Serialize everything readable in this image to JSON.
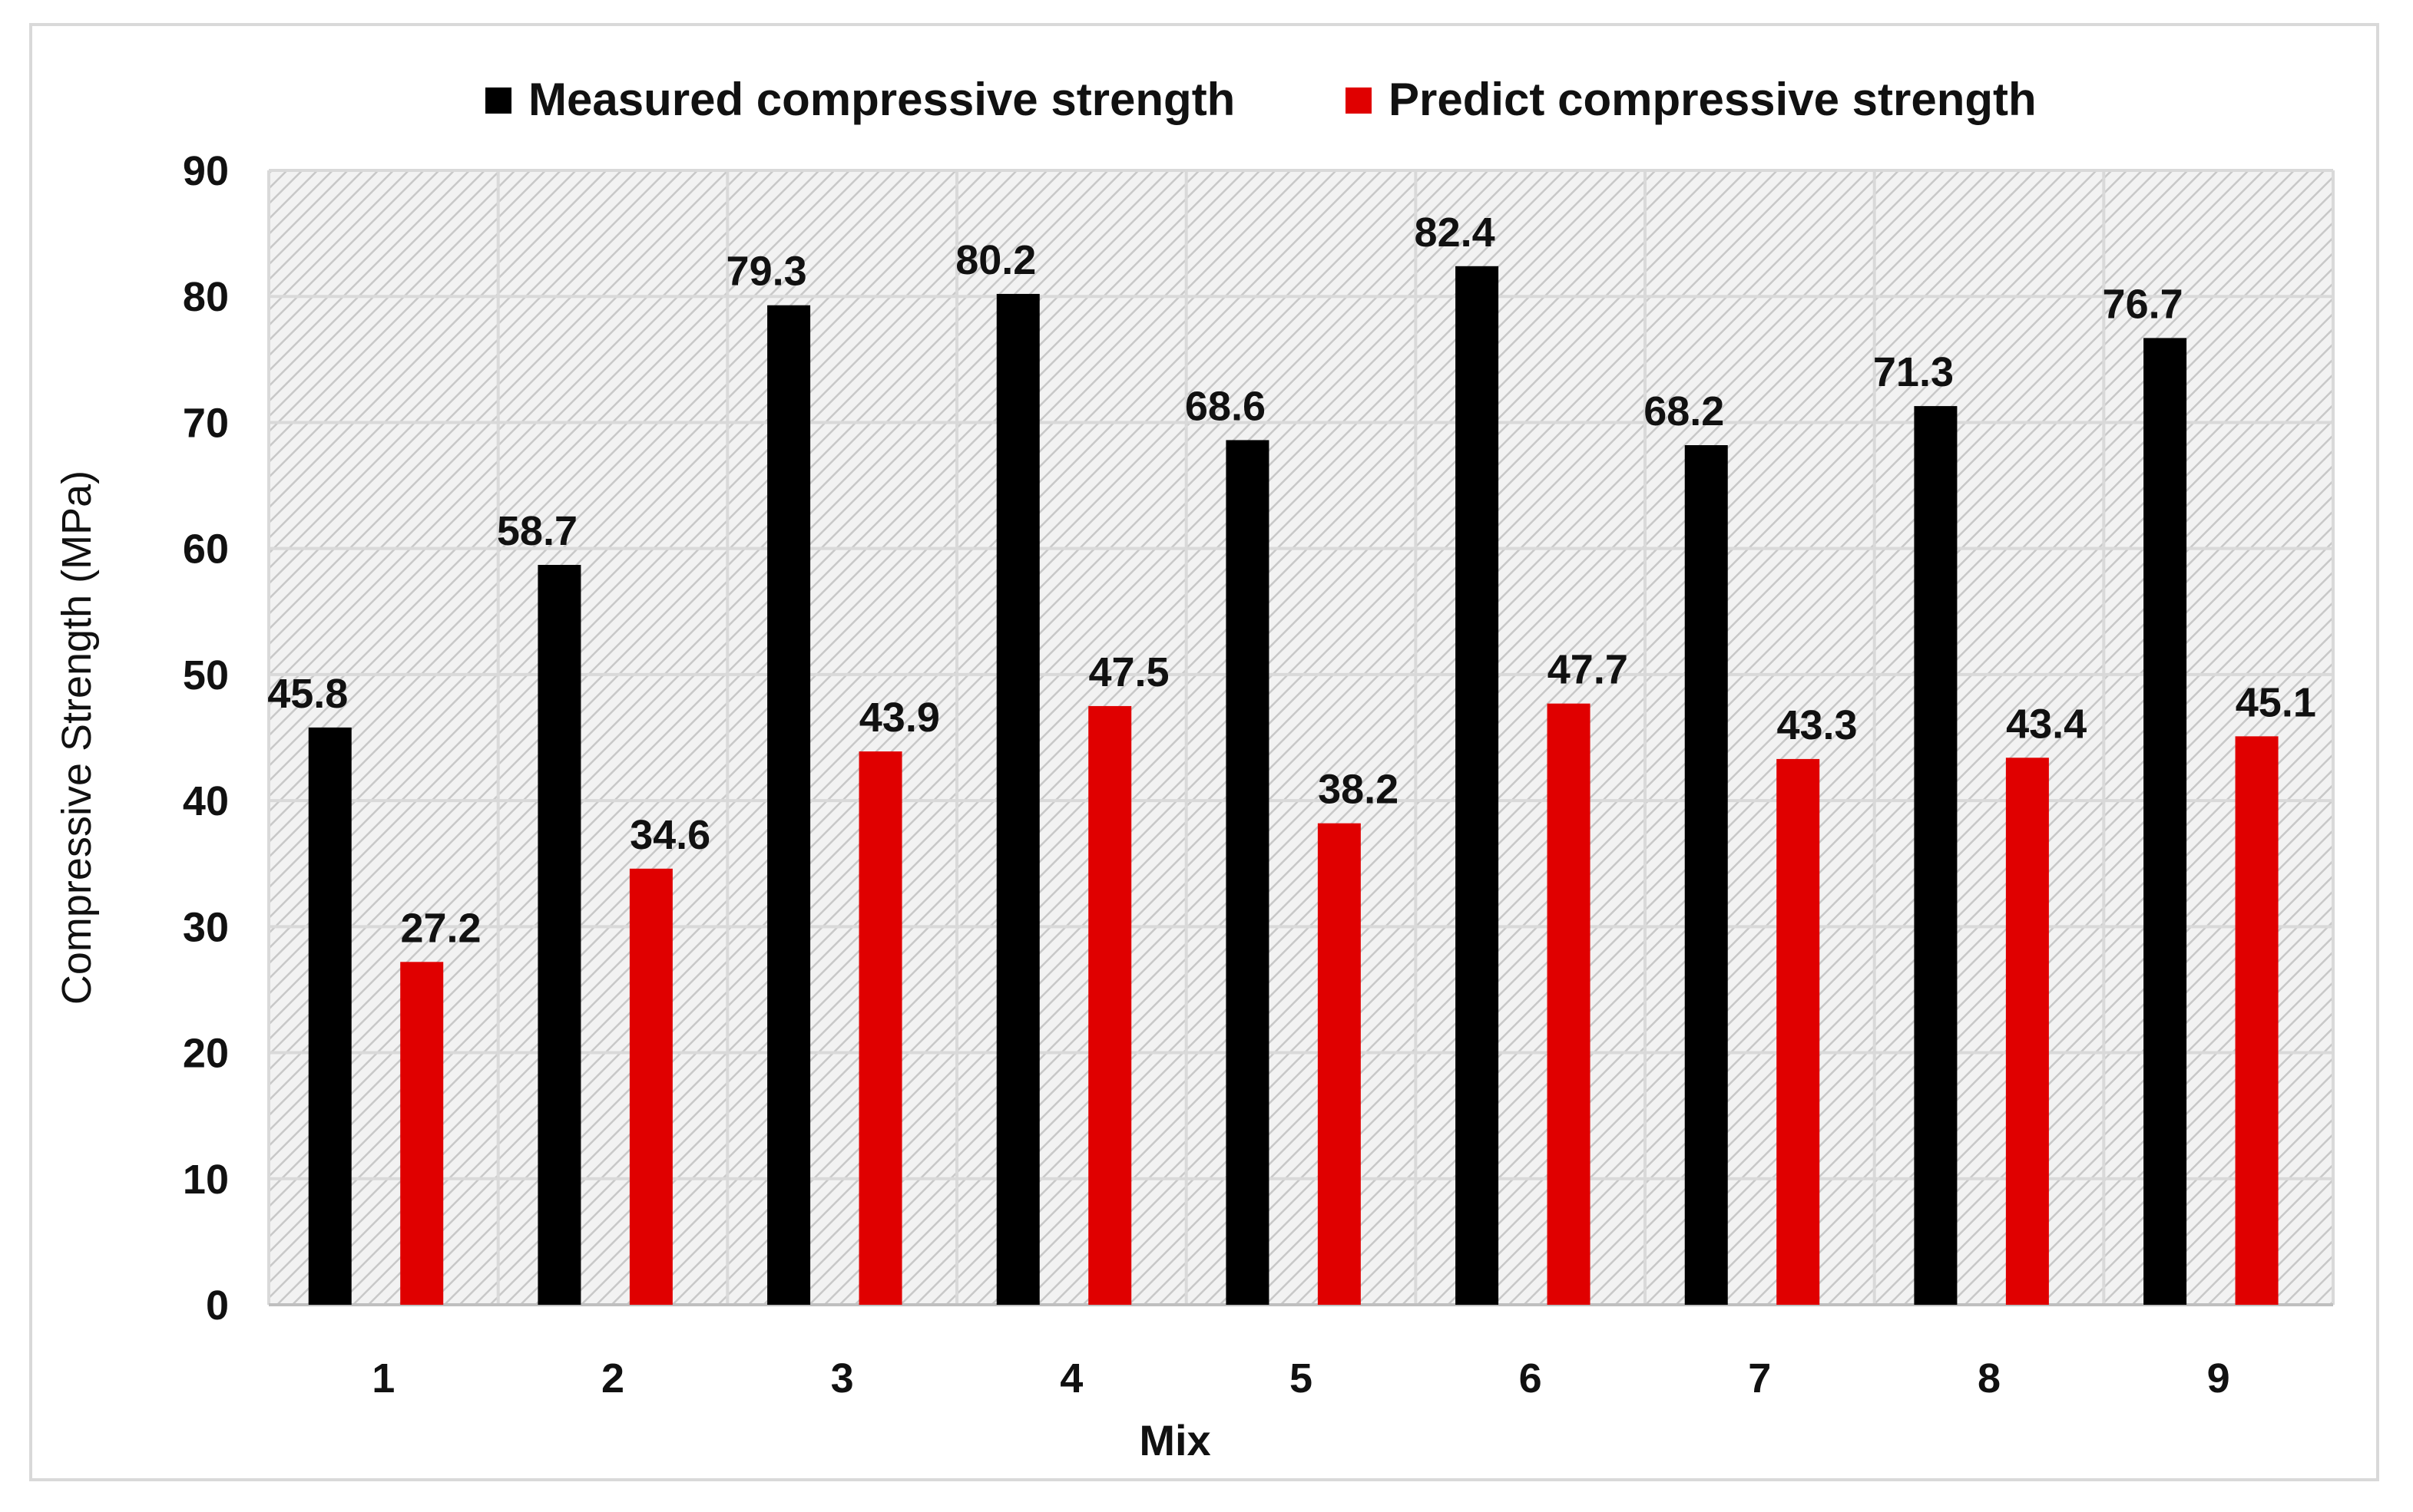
{
  "chart_data": {
    "type": "bar",
    "title": "",
    "xlabel": "Mix",
    "ylabel": "Compressive Strength (MPa)",
    "categories": [
      "1",
      "2",
      "3",
      "4",
      "5",
      "6",
      "7",
      "8",
      "9"
    ],
    "series": [
      {
        "name": "Measured compressive strength",
        "color": "#000000",
        "values": [
          45.8,
          58.7,
          79.3,
          80.2,
          68.6,
          82.4,
          68.2,
          71.3,
          76.7
        ],
        "labels": [
          "45.8",
          "58.7",
          "79.3",
          "80.2",
          "68.6",
          "82.4",
          "68.2",
          "71.3",
          "76.7"
        ]
      },
      {
        "name": "Predict compressive strength",
        "color": "#e00000",
        "values": [
          27.2,
          34.6,
          43.9,
          47.5,
          38.2,
          47.7,
          43.3,
          43.4,
          45.1
        ],
        "labels": [
          "27.2",
          "34.6",
          "43.9",
          "47.5",
          "38.2",
          "47.7",
          "43.3",
          "43.4",
          "45.1"
        ]
      }
    ],
    "ylim": [
      0,
      90
    ],
    "yticks": [
      "0",
      "10",
      "20",
      "30",
      "40",
      "50",
      "60",
      "70",
      "80",
      "90"
    ],
    "grid": true,
    "legend": "top-center"
  }
}
